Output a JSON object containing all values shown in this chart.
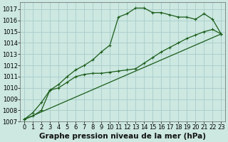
{
  "bg_color": "#cce8e0",
  "grid_color": "#aacccc",
  "line_color": "#1a5c1a",
  "xlabel": "Graphe pression niveau de la mer (hPa)",
  "xlabel_fontsize": 7.5,
  "xtick_fontsize": 6,
  "ytick_fontsize": 6,
  "xlim": [
    -0.5,
    23.5
  ],
  "ylim": [
    1007,
    1017.6
  ],
  "yticks": [
    1007,
    1008,
    1009,
    1010,
    1011,
    1012,
    1013,
    1014,
    1015,
    1016,
    1017
  ],
  "xticks": [
    0,
    1,
    2,
    3,
    4,
    5,
    6,
    7,
    8,
    9,
    10,
    11,
    12,
    13,
    14,
    15,
    16,
    17,
    18,
    19,
    20,
    21,
    22,
    23
  ],
  "line1_x": [
    0,
    1,
    2,
    3,
    4,
    5,
    6,
    7,
    8,
    9,
    10,
    11,
    12,
    13,
    14,
    15,
    16,
    17,
    18,
    19,
    20,
    21,
    22,
    23
  ],
  "line1_y": [
    1007.2,
    1007.8,
    1008.7,
    1009.8,
    1010.3,
    1011.0,
    1011.6,
    1012.0,
    1012.5,
    1013.2,
    1013.8,
    1016.3,
    1016.6,
    1017.1,
    1017.1,
    1016.7,
    1016.7,
    1016.5,
    1016.3,
    1016.3,
    1016.1,
    1016.6,
    1016.1,
    1014.8
  ],
  "line2_x": [
    0,
    1,
    2,
    3,
    4,
    5,
    6,
    7,
    8,
    9,
    10,
    11,
    12,
    13,
    14,
    15,
    16,
    17,
    18,
    19,
    20,
    21,
    22,
    23
  ],
  "line2_y": [
    1007.2,
    1007.5,
    1008.0,
    1009.8,
    1010.0,
    1010.5,
    1011.0,
    1011.2,
    1011.3,
    1011.3,
    1011.4,
    1011.5,
    1011.6,
    1011.7,
    1012.2,
    1012.7,
    1013.2,
    1013.6,
    1014.0,
    1014.4,
    1014.7,
    1015.0,
    1015.2,
    1014.8
  ],
  "line3_x": [
    0,
    23
  ],
  "line3_y": [
    1007.2,
    1014.8
  ]
}
